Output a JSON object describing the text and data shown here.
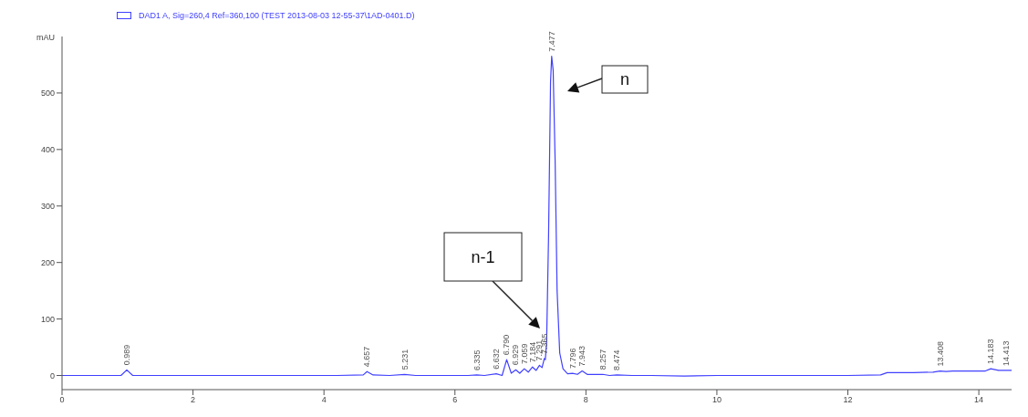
{
  "chart_data": {
    "type": "line",
    "ylabel": "mAU",
    "xlim": [
      0,
      14.5
    ],
    "xticks": [
      0,
      2,
      4,
      6,
      8,
      10,
      12,
      14
    ],
    "ylim": [
      -25,
      600
    ],
    "yticks": [
      0,
      100,
      200,
      300,
      400,
      500
    ],
    "grid": false,
    "legend": "top left",
    "series": [
      {
        "name": "DAD1 A, Sig=260,4 Ref=360,100 (TEST 2013-08-03 12-55-37\\1AD-0401.D)",
        "color": "#4040ff",
        "x": [
          0,
          0.9,
          0.989,
          1.08,
          4.2,
          4.6,
          4.657,
          4.75,
          5.0,
          5.231,
          5.4,
          6.2,
          6.335,
          6.45,
          6.632,
          6.72,
          6.79,
          6.86,
          6.929,
          6.99,
          7.059,
          7.12,
          7.184,
          7.24,
          7.291,
          7.33,
          7.365,
          7.38,
          7.4,
          7.43,
          7.46,
          7.477,
          7.5,
          7.53,
          7.56,
          7.6,
          7.65,
          7.72,
          7.796,
          7.87,
          7.943,
          8.02,
          8.257,
          8.36,
          8.474,
          8.7,
          9.0,
          9.5,
          10,
          10.5,
          11,
          12,
          12.5,
          12.6,
          13,
          13.3,
          13.408,
          13.5,
          13.6,
          14.1,
          14.183,
          14.3,
          14.413,
          14.5
        ],
        "values": [
          0,
          0,
          10,
          0,
          0,
          1,
          7,
          1,
          0,
          2,
          0,
          0,
          1,
          0,
          3,
          0,
          28,
          4,
          10,
          4,
          12,
          6,
          15,
          9,
          18,
          14,
          30,
          28,
          60,
          250,
          520,
          565,
          540,
          380,
          150,
          40,
          12,
          3,
          4,
          2,
          8,
          2,
          2,
          0,
          1,
          0,
          0,
          -1,
          0,
          0,
          0,
          0,
          1,
          5,
          5,
          6,
          8,
          7,
          8,
          8,
          12,
          9,
          9,
          9
        ]
      }
    ],
    "annotations": [
      {
        "text": "0.989",
        "x": 0.989,
        "y": 10
      },
      {
        "text": "4.657",
        "x": 4.657,
        "y": 7
      },
      {
        "text": "5.231",
        "x": 5.231,
        "y": 2
      },
      {
        "text": "6.335",
        "x": 6.335,
        "y": 1
      },
      {
        "text": "6.632",
        "x": 6.632,
        "y": 3
      },
      {
        "text": "6.790",
        "x": 6.79,
        "y": 28
      },
      {
        "text": "6.929",
        "x": 6.929,
        "y": 10
      },
      {
        "text": "7.059",
        "x": 7.059,
        "y": 12
      },
      {
        "text": "7.184",
        "x": 7.184,
        "y": 15
      },
      {
        "text": "7.291",
        "x": 7.291,
        "y": 18
      },
      {
        "text": "7.365",
        "x": 7.365,
        "y": 30
      },
      {
        "text": "7.477",
        "x": 7.477,
        "y": 565
      },
      {
        "text": "7.796",
        "x": 7.796,
        "y": 4
      },
      {
        "text": "7.943",
        "x": 7.943,
        "y": 8
      },
      {
        "text": "8.257",
        "x": 8.257,
        "y": 2
      },
      {
        "text": "8.474",
        "x": 8.474,
        "y": 1
      },
      {
        "text": "13.408",
        "x": 13.408,
        "y": 8
      },
      {
        "text": "14.183",
        "x": 14.183,
        "y": 12
      },
      {
        "text": "14.413",
        "x": 14.413,
        "y": 9
      },
      "n-1",
      "n"
    ]
  }
}
